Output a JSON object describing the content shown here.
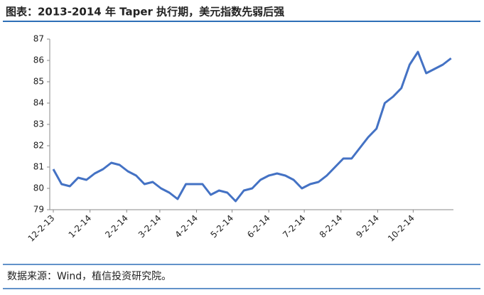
{
  "chart_data": {
    "type": "line",
    "title": "图表：2013-2014 年 Taper 执行期，美元指数先弱后强",
    "source": "数据来源：Wind，植信投资研究院。",
    "x": [
      "2013-12-02",
      "2013-12-09",
      "2013-12-16",
      "2013-12-23",
      "2013-12-30",
      "2014-01-06",
      "2014-01-13",
      "2014-01-20",
      "2014-01-27",
      "2014-02-03",
      "2014-02-10",
      "2014-02-17",
      "2014-02-24",
      "2014-03-03",
      "2014-03-10",
      "2014-03-17",
      "2014-03-24",
      "2014-03-31",
      "2014-04-07",
      "2014-04-14",
      "2014-04-21",
      "2014-04-28",
      "2014-05-05",
      "2014-05-12",
      "2014-05-19",
      "2014-05-26",
      "2014-06-02",
      "2014-06-09",
      "2014-06-16",
      "2014-06-23",
      "2014-06-30",
      "2014-07-07",
      "2014-07-14",
      "2014-07-21",
      "2014-07-28",
      "2014-08-04",
      "2014-08-11",
      "2014-08-18",
      "2014-08-25",
      "2014-09-01",
      "2014-09-08",
      "2014-09-15",
      "2014-09-22",
      "2014-09-29",
      "2014-10-06",
      "2014-10-13",
      "2014-10-20",
      "2014-10-27",
      "2014-11-03"
    ],
    "series": [
      {
        "color": "#4472c4",
        "values": [
          80.9,
          80.2,
          80.1,
          80.5,
          80.4,
          80.7,
          80.9,
          81.2,
          81.1,
          80.8,
          80.6,
          80.2,
          80.3,
          80.0,
          79.8,
          79.5,
          80.2,
          80.2,
          80.2,
          79.7,
          79.9,
          79.8,
          79.4,
          79.9,
          80.0,
          80.4,
          80.6,
          80.7,
          80.6,
          80.4,
          80.0,
          80.2,
          80.3,
          80.6,
          81.0,
          81.4,
          81.4,
          81.9,
          82.4,
          82.8,
          84.0,
          84.3,
          84.7,
          85.8,
          86.4,
          85.4,
          85.6,
          85.8,
          86.1
        ]
      }
    ],
    "ylim": [
      79,
      87
    ],
    "yticks": [
      79,
      80,
      81,
      82,
      83,
      84,
      85,
      86,
      87
    ],
    "xlim": [
      "2013-11-29",
      "2014-11-05"
    ],
    "xticks": [
      {
        "value": "2013-12-02",
        "label": "12-2-13"
      },
      {
        "value": "2014-01-02",
        "label": "1-2-14"
      },
      {
        "value": "2014-02-02",
        "label": "2-2-14"
      },
      {
        "value": "2014-03-02",
        "label": "3-2-14"
      },
      {
        "value": "2014-04-02",
        "label": "4-2-14"
      },
      {
        "value": "2014-05-02",
        "label": "5-2-14"
      },
      {
        "value": "2014-06-02",
        "label": "6-2-14"
      },
      {
        "value": "2014-07-02",
        "label": "7-2-14"
      },
      {
        "value": "2014-08-02",
        "label": "8-2-14"
      },
      {
        "value": "2014-09-02",
        "label": "9-2-14"
      },
      {
        "value": "2014-10-02",
        "label": "10-2-14"
      }
    ]
  }
}
